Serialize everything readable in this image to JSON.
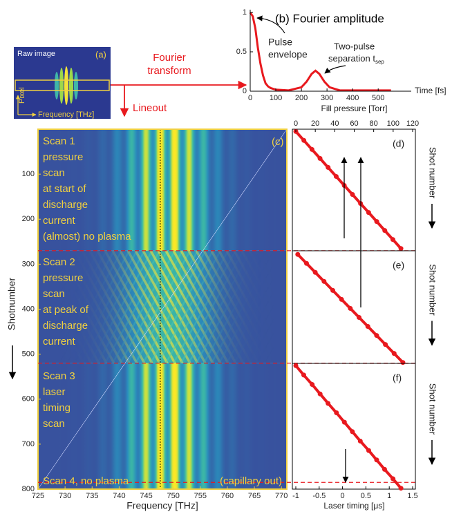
{
  "figure": {
    "raw_image": "Raw image",
    "panel": "(a)",
    "pixel": "Pixel",
    "frequency": "Frequency [THz]",
    "fourier": [
      "Fourier",
      "transform"
    ],
    "lineout": "Lineout"
  },
  "chart_data": [
    {
      "type": "line",
      "title": "(b) Fourier amplitude",
      "xlabel": "Time [fs]",
      "x": [
        0,
        10,
        20,
        30,
        40,
        50,
        60,
        70,
        80,
        100,
        150,
        200,
        220,
        240,
        255,
        270,
        290,
        310,
        350,
        400,
        450,
        500,
        550
      ],
      "values": [
        1.0,
        0.95,
        0.8,
        0.55,
        0.35,
        0.2,
        0.1,
        0.06,
        0.04,
        0.02,
        0.01,
        0.05,
        0.12,
        0.22,
        0.26,
        0.22,
        0.12,
        0.05,
        0.01,
        0.01,
        0.01,
        0.01,
        0.01
      ],
      "color": "#e8191e",
      "xlim": [
        0,
        575
      ],
      "ylim": [
        0,
        1
      ],
      "xticks": [
        0,
        100,
        200,
        300,
        400,
        500
      ],
      "yticks": [
        0,
        0.5,
        1
      ],
      "annotations": [
        "Pulse",
        "envelope",
        "Two-pulse",
        "separation t"
      ],
      "subscript": "sep"
    },
    {
      "type": "heatmap",
      "label": "(c)",
      "xlabel": "Frequency [THz]",
      "ylabel": "Shotnumber",
      "xlim": [
        725,
        771
      ],
      "ylim": [
        800,
        0
      ],
      "xticks": [
        725,
        730,
        735,
        740,
        745,
        750,
        755,
        760,
        765,
        770
      ],
      "yticks": [
        100,
        200,
        300,
        400,
        500,
        600,
        700,
        800
      ],
      "boundaries": [
        270,
        520,
        785
      ],
      "annotations": [
        [
          "Scan 1",
          "pressure",
          "scan",
          "at start of",
          "discharge",
          "current",
          "(almost) no plasma"
        ],
        [
          "Scan 2",
          "pressure",
          "scan",
          "at peak of",
          "discharge",
          "current"
        ],
        [
          "Scan 3",
          "laser",
          "timing",
          "scan"
        ],
        [
          "Scan 4, no plasma"
        ],
        [
          "(capillary out)"
        ]
      ]
    },
    {
      "type": "scatter",
      "label": "(d)",
      "xlabel": "Fill pressure [Torr]",
      "ylabel": "Shot number",
      "x": [
        0,
        8.3,
        16.6,
        24.9,
        33.2,
        41.5,
        49.8,
        58.2,
        66.5,
        74.8,
        83.1,
        91.4,
        99.7,
        108
      ],
      "values": [
        5,
        25,
        45,
        65,
        85,
        105,
        125,
        145,
        165,
        185,
        205,
        225,
        245,
        265
      ],
      "color": "#e8191e",
      "xlim": [
        0,
        120
      ],
      "ylim": [
        270,
        0
      ],
      "xticks": [
        0,
        20,
        40,
        60,
        80,
        100,
        120
      ]
    },
    {
      "type": "scatter",
      "label": "(e)",
      "ylabel": "Shot number",
      "x": [
        2,
        11,
        20,
        29,
        38,
        47,
        56,
        65,
        74,
        83,
        92,
        101,
        110
      ],
      "values": [
        278,
        298,
        318,
        338,
        358,
        378,
        398,
        418,
        438,
        458,
        478,
        498,
        518
      ],
      "color": "#e8191e",
      "xlim": [
        0,
        120
      ],
      "ylim": [
        520,
        270
      ]
    },
    {
      "type": "scatter",
      "label": "(f)",
      "xlabel": "Laser timing [μs]",
      "ylabel": "Shot number",
      "x": [
        -1,
        -0.83,
        -0.65,
        -0.48,
        -0.31,
        -0.13,
        0.04,
        0.21,
        0.38,
        0.56,
        0.73,
        0.9,
        1.08,
        1.25
      ],
      "values": [
        525,
        546,
        567,
        588,
        609,
        630,
        651,
        672,
        693,
        714,
        735,
        756,
        777,
        798
      ],
      "color": "#e8191e",
      "xlim": [
        -1,
        1.5
      ],
      "ylim": [
        800,
        520
      ],
      "xticks": [
        -1,
        -0.5,
        0,
        0.5,
        1,
        1.5
      ]
    }
  ]
}
